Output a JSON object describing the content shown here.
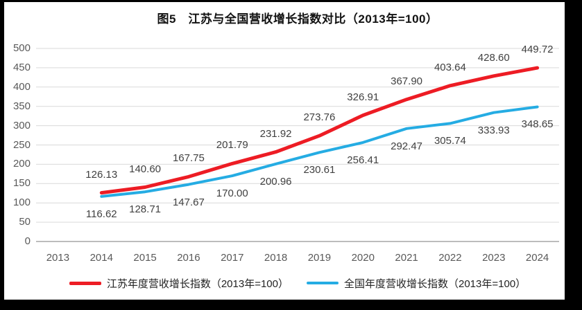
{
  "page": {
    "background": "#000000",
    "panel_background": "#ffffff"
  },
  "title": "图5　江苏与全国营收增长指数对比（2013年=100）",
  "chart_data": {
    "type": "line",
    "title": "图5　江苏与全国营收增长指数对比（2013年=100）",
    "categories": [
      "2013",
      "2014",
      "2015",
      "2016",
      "2017",
      "2018",
      "2019",
      "2020",
      "2021",
      "2022",
      "2023",
      "2024"
    ],
    "ylim": [
      0,
      500
    ],
    "ytick_step": 50,
    "yticks": [
      "0",
      "50",
      "100",
      "150",
      "200",
      "250",
      "300",
      "350",
      "400",
      "450",
      "500"
    ],
    "grid": true,
    "legend_position": "bottom",
    "gridline_color": "#D9D9D9",
    "axis_color": "#A6A6A6",
    "tick_label_color": "#595959",
    "data_label_color": "#404040",
    "series": [
      {
        "name": "江苏年度营收增长指数（2013年=100）",
        "color": "#ED1C24",
        "stroke_width": 5,
        "start_index": 1,
        "label_side": "above",
        "values": [
          126.13,
          140.6,
          167.75,
          201.79,
          231.92,
          273.76,
          326.91,
          367.9,
          403.64,
          428.6,
          449.72
        ],
        "labels": [
          "126.13",
          "140.60",
          "167.75",
          "201.79",
          "231.92",
          "273.76",
          "326.91",
          "367.90",
          "403.64",
          "428.60",
          "449.72"
        ]
      },
      {
        "name": "全国年度营收增长指数（2013年=100）",
        "color": "#25ACE3",
        "stroke_width": 4,
        "start_index": 1,
        "label_side": "below",
        "values": [
          116.62,
          128.71,
          147.67,
          170.0,
          200.96,
          230.61,
          256.41,
          292.47,
          305.74,
          333.93,
          348.65
        ],
        "labels": [
          "116.62",
          "128.71",
          "147.67",
          "170.00",
          "200.96",
          "230.61",
          "256.41",
          "292.47",
          "305.74",
          "333.93",
          "348.65"
        ]
      }
    ]
  }
}
